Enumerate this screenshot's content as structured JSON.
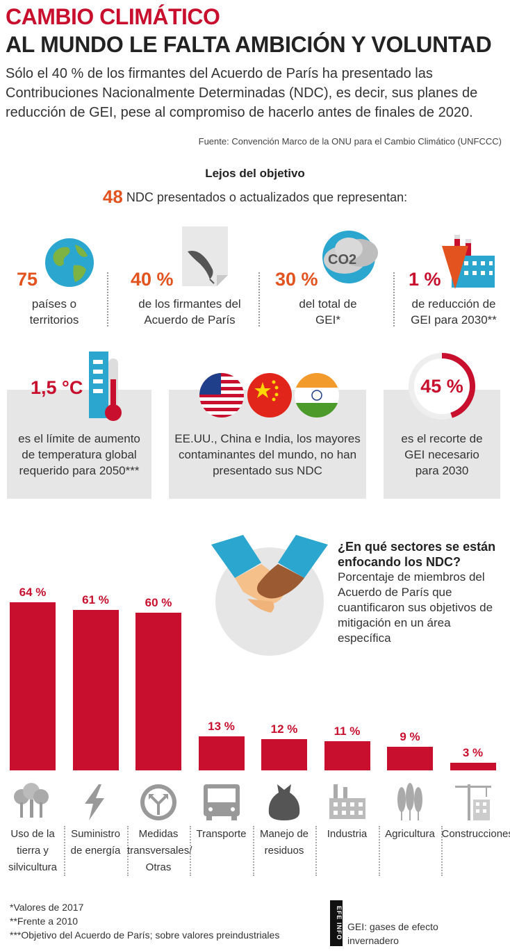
{
  "header": {
    "title_line1": "CAMBIO CLIMÁTICO",
    "title_line2": "AL MUNDO LE FALTA AMBICIÓN Y VOLUNTAD",
    "intro": "Sólo el 40 % de los firmantes del Acuerdo de París ha presentado las Contribuciones Nacionalmente Determinadas (NDC), es decir, sus planes de reducción de GEI, pese al compromiso de hacerlo antes de finales de 2020.",
    "source": "Fuente: Convención Marco de la ONU para el Cambio Climático (UNFCCC)"
  },
  "summary": {
    "section_title": "Lejos del objetivo",
    "ndc_count": "48",
    "ndc_text": "NDC presentados o actualizados que representan:"
  },
  "stats": [
    {
      "value": "75",
      "label_l1": "países o",
      "label_l2": "territorios",
      "icon": "globe-icon"
    },
    {
      "value": "40 %",
      "label_l1": "de los firmantes del",
      "label_l2": "Acuerdo de París",
      "icon": "quill-document-icon"
    },
    {
      "value": "30 %",
      "label_l1": "del total de",
      "label_l2": "GEI*",
      "icon": "co2-cloud-icon",
      "icon_text": "CO2"
    },
    {
      "value": "1 %",
      "label_l1": "de reducción de",
      "label_l2": "GEI para 2030**",
      "icon": "factory-down-arrow-icon"
    }
  ],
  "boxes": [
    {
      "value": "1,5 °C",
      "l1": "es el límite de aumento",
      "l2": "de temperatura global",
      "l3": "requerido para 2050***",
      "icon": "thermometer-icon"
    },
    {
      "l1": "EE.UU., China e India, los mayores",
      "l2": "contaminantes del mundo, no han",
      "l3": "presentado sus NDC",
      "icon": "flags-icon"
    },
    {
      "value": "45 %",
      "l1": "es el recorte de",
      "l2": "GEI necesario",
      "l3": "para 2030",
      "icon": "progress-ring-icon",
      "ring_fraction": 0.45
    }
  ],
  "sectors_question": {
    "title_l1": "¿En qué sectores se están",
    "title_l2": "enfocando los NDC?",
    "sub_l1": "Porcentaje de miembros del",
    "sub_l2": "Acuerdo de París que",
    "sub_l3": "cuantificaron sus objetivos de",
    "sub_l4": "mitigación en un área específica",
    "icon": "handshake-icon"
  },
  "chart_data": {
    "type": "bar",
    "categories": [
      "Uso de la tierra y silvicultura",
      "Suministro de energía",
      "Medidas transversales/ Otras",
      "Transporte",
      "Manejo de residuos",
      "Industria",
      "Agricultura",
      "Construcciones"
    ],
    "values": [
      64,
      61,
      60,
      13,
      12,
      11,
      9,
      3
    ],
    "value_labels": [
      "64 %",
      "61 %",
      "60 %",
      "13 %",
      "12 %",
      "11 %",
      "9 %",
      "3 %"
    ],
    "ylim": [
      0,
      70
    ],
    "color": "#c8102e",
    "category_lines": [
      [
        "Uso de la",
        "tierra y",
        "silvicultura"
      ],
      [
        "Suministro",
        "de energía"
      ],
      [
        "Medidas",
        "transversales/",
        "Otras"
      ],
      [
        "Transporte"
      ],
      [
        "Manejo de",
        "residuos"
      ],
      [
        "Industria"
      ],
      [
        "Agricultura"
      ],
      [
        "Construcciones"
      ]
    ],
    "icons": [
      "trees-icon",
      "lightning-icon",
      "road-split-icon",
      "bus-icon",
      "garbage-bag-icon",
      "factory-icon",
      "wheat-icon",
      "crane-building-icon"
    ]
  },
  "notes": {
    "n1": "*Valores de 2017",
    "n2": "**Frente a 2010",
    "n3": "***Objetivo del Acuerdo de París; sobre valores preindustriales",
    "gei_l1": "GEI: gases de efecto",
    "gei_l2": "invernadero"
  },
  "logo": {
    "text": "EFE INFO"
  },
  "colors": {
    "red": "#c8102e",
    "orange": "#e2531f",
    "gray_box": "#e6e6e6"
  }
}
